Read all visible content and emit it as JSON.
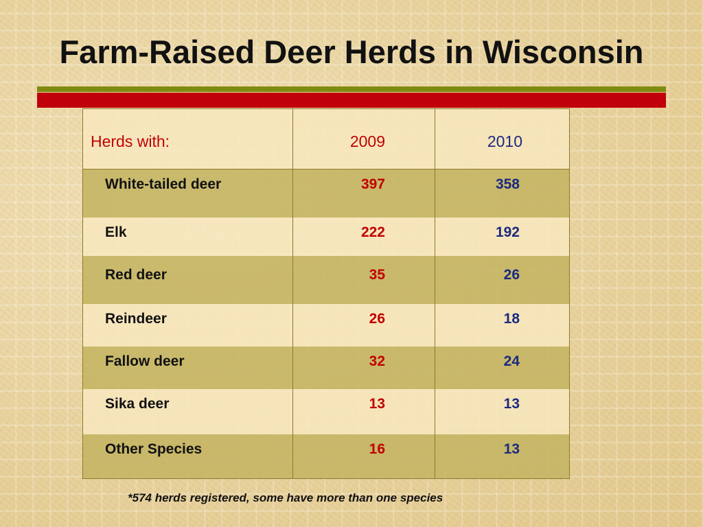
{
  "slide": {
    "title": "Farm-Raised Deer Herds in Wisconsin",
    "footnote": "*574 herds registered, some have more than one species",
    "colors": {
      "title_text": "#111111",
      "rule_olive": "#7f8a10",
      "rule_red": "#c0000a",
      "value_2009": "#c00000",
      "value_2010": "#1a2a80",
      "row_dark": "#c4b462",
      "row_light": "#f8e8be"
    }
  },
  "table": {
    "header": {
      "label": "Herds with:",
      "col_2009": "2009",
      "col_2010": "2010"
    },
    "rows": [
      {
        "species": "White-tailed deer",
        "v2009": "397",
        "v2010": "358"
      },
      {
        "species": "Elk",
        "v2009": "222",
        "v2010": "192"
      },
      {
        "species": "Red deer",
        "v2009": "35",
        "v2010": "26"
      },
      {
        "species": "Reindeer",
        "v2009": "26",
        "v2010": "18"
      },
      {
        "species": "Fallow deer",
        "v2009": "32",
        "v2010": "24"
      },
      {
        "species": "Sika deer",
        "v2009": "13",
        "v2010": "13"
      },
      {
        "species": "Other Species",
        "v2009": "16",
        "v2010": "13"
      }
    ]
  }
}
